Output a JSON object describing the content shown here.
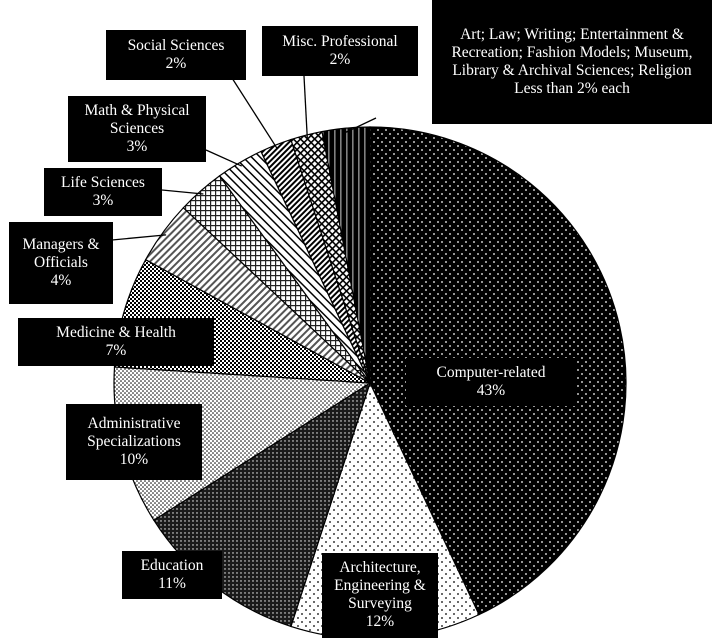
{
  "chart_data": {
    "type": "pie",
    "start": "top",
    "direction": "clockwise",
    "slices": [
      {
        "name": "Computer-related",
        "value": 43,
        "label": "Computer-related",
        "pct": "43%",
        "pattern": "dots-black"
      },
      {
        "name": "Architecture, Engineering & Surveying",
        "value": 12,
        "label": "Architecture, Engineering & Surveying",
        "pct": "12%",
        "pattern": "dots-white"
      },
      {
        "name": "Education",
        "value": 11,
        "label": "Education",
        "pct": "11%",
        "pattern": "dots-dense-dark"
      },
      {
        "name": "Administrative Specializations",
        "value": 10,
        "label": "Administrative Specializations",
        "pct": "10%",
        "pattern": "dots-light"
      },
      {
        "name": "Medicine & Health",
        "value": 7,
        "label": "Medicine & Health",
        "pct": "7%",
        "pattern": "checker"
      },
      {
        "name": "Managers & Officials",
        "value": 4,
        "label": "Managers & Officials",
        "pct": "4%",
        "pattern": "diag-light"
      },
      {
        "name": "Life Sciences",
        "value": 3,
        "label": "Life Sciences",
        "pct": "3%",
        "pattern": "grid-light"
      },
      {
        "name": "Math & Physical Sciences",
        "value": 3,
        "label": "Math & Physical Sciences",
        "pct": "3%",
        "pattern": "diag-white"
      },
      {
        "name": "Social Sciences",
        "value": 2,
        "label": "Social Sciences",
        "pct": "2%",
        "pattern": "diag-dense"
      },
      {
        "name": "Misc. Professional",
        "value": 2,
        "label": "Misc. Professional",
        "pct": "2%",
        "pattern": "cross-hatch"
      },
      {
        "name": "Art; Law; Writing; Entertainment & Recreation; Fashion Models; Museum, Library & Archival Sciences; Religion",
        "value": 3,
        "label": "Art; Law; Writing; Entertainment & Recreation; Fashion Models; Museum, Library & Archival Sciences; Religion",
        "pct": "Less than 2% each",
        "pattern": "solid-black-stripes"
      }
    ]
  }
}
